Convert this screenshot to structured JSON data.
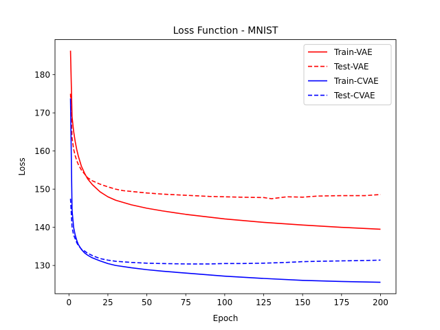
{
  "chart_data": {
    "type": "line",
    "title": "Loss Function - MNIST",
    "xlabel": "Epoch",
    "ylabel": "Loss",
    "xlim": [
      -8.95,
      209.95
    ],
    "ylim": [
      122.6,
      189.2
    ],
    "xticks": [
      0,
      25,
      50,
      75,
      100,
      125,
      150,
      175,
      200
    ],
    "yticks": [
      130,
      140,
      150,
      160,
      170,
      180
    ],
    "grid": false,
    "legend_position": "upper-right",
    "series": [
      {
        "name": "Train-VAE",
        "color": "#ff0000",
        "style": "solid",
        "x": [
          1,
          2,
          3,
          4,
          5,
          6,
          8,
          10,
          12,
          15,
          20,
          25,
          30,
          40,
          50,
          60,
          75,
          100,
          125,
          150,
          175,
          200
        ],
        "y": [
          186.3,
          169.0,
          165.2,
          162.5,
          160.4,
          158.7,
          156.0,
          154.2,
          152.7,
          151.2,
          149.3,
          148.0,
          147.1,
          145.9,
          145.0,
          144.3,
          143.4,
          142.2,
          141.3,
          140.6,
          140.0,
          139.5
        ]
      },
      {
        "name": "Test-VAE",
        "color": "#ff0000",
        "style": "dashed",
        "x": [
          1,
          2,
          3,
          4,
          5,
          6,
          8,
          10,
          12,
          15,
          20,
          25,
          30,
          35,
          40,
          50,
          60,
          75,
          90,
          100,
          110,
          125,
          130,
          140,
          150,
          160,
          175,
          190,
          200
        ],
        "y": [
          175.0,
          163.5,
          160.5,
          158.8,
          157.5,
          156.5,
          155.0,
          154.0,
          153.0,
          152.2,
          151.3,
          150.6,
          150.0,
          149.6,
          149.4,
          149.0,
          148.7,
          148.4,
          148.1,
          148.0,
          147.9,
          147.8,
          147.5,
          148.0,
          147.9,
          148.2,
          148.3,
          148.3,
          148.6
        ]
      },
      {
        "name": "Train-CVAE",
        "color": "#0000ff",
        "style": "solid",
        "x": [
          1,
          2,
          3,
          4,
          5,
          6,
          8,
          10,
          12,
          15,
          20,
          25,
          30,
          40,
          50,
          60,
          75,
          100,
          125,
          150,
          175,
          200
        ],
        "y": [
          173.8,
          144.5,
          140.0,
          138.0,
          136.6,
          135.5,
          134.2,
          133.3,
          132.7,
          132.0,
          131.2,
          130.5,
          130.0,
          129.4,
          128.9,
          128.5,
          128.0,
          127.2,
          126.6,
          126.1,
          125.8,
          125.6
        ]
      },
      {
        "name": "Test-CVAE",
        "color": "#0000ff",
        "style": "dashed",
        "x": [
          1,
          2,
          3,
          4,
          5,
          6,
          8,
          10,
          12,
          15,
          20,
          25,
          30,
          40,
          50,
          60,
          75,
          90,
          100,
          110,
          125,
          140,
          150,
          160,
          175,
          190,
          200
        ],
        "y": [
          147.5,
          140.0,
          138.0,
          137.0,
          136.0,
          135.2,
          134.3,
          133.8,
          133.2,
          132.6,
          131.8,
          131.4,
          131.1,
          130.8,
          130.6,
          130.5,
          130.4,
          130.4,
          130.5,
          130.5,
          130.6,
          130.8,
          131.0,
          131.1,
          131.2,
          131.3,
          131.4
        ]
      }
    ]
  }
}
